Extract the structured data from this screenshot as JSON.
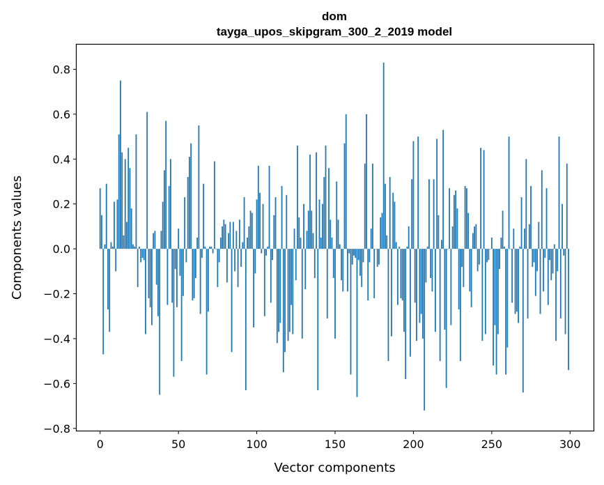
{
  "chart_data": {
    "type": "bar",
    "title": "dom",
    "subtitle": "tayga_upos_skipgram_300_2_2019 model",
    "xlabel": "Vector components",
    "ylabel": "Components values",
    "xlim": [
      -15,
      315
    ],
    "ylim": [
      -0.81,
      0.91
    ],
    "xticks": [
      0,
      50,
      100,
      150,
      200,
      250,
      300
    ],
    "yticks": [
      -0.8,
      -0.6,
      -0.4,
      -0.2,
      0.0,
      0.2,
      0.4,
      0.6,
      0.8
    ],
    "ytick_labels": [
      "−0.8",
      "−0.6",
      "−0.4",
      "−0.2",
      "0.0",
      "0.2",
      "0.4",
      "0.6",
      "0.8"
    ],
    "xtick_labels": [
      "0",
      "50",
      "100",
      "150",
      "200",
      "250",
      "300"
    ],
    "bar_color": "#1f77b4",
    "grid": false,
    "x": [
      0,
      1,
      2,
      3,
      4,
      5,
      6,
      7,
      8,
      9,
      10,
      11,
      12,
      13,
      14,
      15,
      16,
      17,
      18,
      19,
      20,
      21,
      22,
      23,
      24,
      25,
      26,
      27,
      28,
      29,
      30,
      31,
      32,
      33,
      34,
      35,
      36,
      37,
      38,
      39,
      40,
      41,
      42,
      43,
      44,
      45,
      46,
      47,
      48,
      49,
      50,
      51,
      52,
      53,
      54,
      55,
      56,
      57,
      58,
      59,
      60,
      61,
      62,
      63,
      64,
      65,
      66,
      67,
      68,
      69,
      70,
      71,
      72,
      73,
      74,
      75,
      76,
      77,
      78,
      79,
      80,
      81,
      82,
      83,
      84,
      85,
      86,
      87,
      88,
      89,
      90,
      91,
      92,
      93,
      94,
      95,
      96,
      97,
      98,
      99,
      100,
      101,
      102,
      103,
      104,
      105,
      106,
      107,
      108,
      109,
      110,
      111,
      112,
      113,
      114,
      115,
      116,
      117,
      118,
      119,
      120,
      121,
      122,
      123,
      124,
      125,
      126,
      127,
      128,
      129,
      130,
      131,
      132,
      133,
      134,
      135,
      136,
      137,
      138,
      139,
      140,
      141,
      142,
      143,
      144,
      145,
      146,
      147,
      148,
      149,
      150,
      151,
      152,
      153,
      154,
      155,
      156,
      157,
      158,
      159,
      160,
      161,
      162,
      163,
      164,
      165,
      166,
      167,
      168,
      169,
      170,
      171,
      172,
      173,
      174,
      175,
      176,
      177,
      178,
      179,
      180,
      181,
      182,
      183,
      184,
      185,
      186,
      187,
      188,
      189,
      190,
      191,
      192,
      193,
      194,
      195,
      196,
      197,
      198,
      199,
      200,
      201,
      202,
      203,
      204,
      205,
      206,
      207,
      208,
      209,
      210,
      211,
      212,
      213,
      214,
      215,
      216,
      217,
      218,
      219,
      220,
      221,
      222,
      223,
      224,
      225,
      226,
      227,
      228,
      229,
      230,
      231,
      232,
      233,
      234,
      235,
      236,
      237,
      238,
      239,
      240,
      241,
      242,
      243,
      244,
      245,
      246,
      247,
      248,
      249,
      250,
      251,
      252,
      253,
      254,
      255,
      256,
      257,
      258,
      259,
      260,
      261,
      262,
      263,
      264,
      265,
      266,
      267,
      268,
      269,
      270,
      271,
      272,
      273,
      274,
      275,
      276,
      277,
      278,
      279,
      280,
      281,
      282,
      283,
      284,
      285,
      286,
      287,
      288,
      289,
      290,
      291,
      292,
      293,
      294,
      295,
      296,
      297,
      298,
      299
    ],
    "values": [
      0.27,
      0.15,
      -0.47,
      0.02,
      0.29,
      -0.27,
      -0.37,
      0.03,
      0.01,
      0.21,
      -0.1,
      0.22,
      0.51,
      0.75,
      0.43,
      0.06,
      0.4,
      0.12,
      0.45,
      0.36,
      0.18,
      0.02,
      0.01,
      0.51,
      -0.17,
      0.01,
      -0.06,
      -0.04,
      -0.05,
      -0.38,
      0.61,
      -0.22,
      -0.26,
      -0.34,
      0.07,
      0.08,
      -0.16,
      -0.3,
      -0.65,
      0.08,
      0.21,
      0.35,
      0.57,
      -0.25,
      0.28,
      0.4,
      -0.24,
      -0.57,
      -0.09,
      -0.26,
      0.09,
      -0.12,
      -0.5,
      -0.21,
      0.23,
      -0.06,
      0.32,
      0.41,
      0.47,
      -0.23,
      -0.22,
      -0.13,
      0.05,
      0.55,
      -0.29,
      -0.04,
      0.29,
      0.01,
      -0.56,
      -0.28,
      0.01,
      0.01,
      -0.02,
      0.39,
      0.0,
      -0.17,
      -0.06,
      0.05,
      0.1,
      0.13,
      0.11,
      -0.15,
      0.07,
      0.12,
      -0.46,
      0.12,
      -0.1,
      0.08,
      -0.17,
      0.13,
      -0.08,
      0.03,
      0.23,
      -0.63,
      0.05,
      0.1,
      0.17,
      0.16,
      -0.35,
      -0.11,
      0.22,
      0.37,
      0.25,
      -0.02,
      0.2,
      -0.3,
      -0.03,
      0.01,
      0.37,
      -0.24,
      -0.05,
      0.15,
      0.23,
      -0.42,
      -0.37,
      -0.33,
      0.28,
      -0.55,
      -0.46,
      0.24,
      -0.41,
      -0.37,
      -0.25,
      -0.38,
      0.09,
      -0.14,
      0.46,
      0.14,
      0.05,
      -0.4,
      0.2,
      -0.18,
      0.08,
      0.17,
      0.42,
      0.17,
      0.07,
      -0.13,
      0.43,
      -0.63,
      0.22,
      0.05,
      0.2,
      0.32,
      0.46,
      -0.31,
      0.36,
      0.13,
      0.05,
      -0.13,
      -0.4,
      0.3,
      0.13,
      0.02,
      -0.14,
      -0.19,
      0.47,
      0.6,
      -0.19,
      -0.02,
      -0.56,
      -0.07,
      -0.03,
      -0.04,
      -0.66,
      -0.05,
      -0.12,
      -0.17,
      -0.06,
      0.38,
      0.6,
      -0.23,
      -0.06,
      0.09,
      0.38,
      -0.22,
      0.0,
      -0.08,
      -0.07,
      0.14,
      0.16,
      0.83,
      0.29,
      0.06,
      -0.5,
      0.32,
      -0.39,
      0.25,
      0.21,
      0.03,
      -0.25,
      0.01,
      -0.22,
      -0.23,
      -0.37,
      -0.58,
      0.01,
      0.1,
      -0.48,
      0.31,
      0.48,
      -0.24,
      -0.41,
      0.5,
      -0.33,
      -0.29,
      -0.4,
      -0.72,
      -0.15,
      0.01,
      0.31,
      -0.13,
      -0.19,
      0.31,
      -0.37,
      0.49,
      0.15,
      -0.5,
      0.04,
      0.53,
      -0.36,
      -0.62,
      0.0,
      0.27,
      -0.34,
      0.1,
      0.24,
      0.26,
      0.18,
      -0.27,
      -0.5,
      -0.08,
      -0.17,
      0.28,
      0.27,
      0.16,
      -0.19,
      -0.26,
      0.07,
      0.1,
      0.11,
      -0.1,
      -0.07,
      0.45,
      -0.41,
      0.44,
      -0.38,
      -0.06,
      -0.05,
      0.0,
      0.05,
      -0.52,
      -0.34,
      -0.56,
      -0.38,
      -0.09,
      0.05,
      0.17,
      0.01,
      -0.56,
      -0.44,
      0.5,
      0.0,
      -0.24,
      0.09,
      -0.29,
      -0.28,
      -0.33,
      0.01,
      0.23,
      -0.64,
      0.09,
      0.4,
      -0.31,
      0.11,
      0.28,
      -0.08,
      -0.06,
      -0.21,
      -0.1,
      0.12,
      -0.29,
      0.35,
      -0.19,
      -0.04,
      0.27,
      -0.25,
      -0.05,
      -0.14,
      -0.11,
      0.02,
      -0.41,
      -0.1,
      0.5,
      -0.31,
      0.2,
      -0.03,
      -0.38,
      0.38,
      -0.54
    ]
  }
}
